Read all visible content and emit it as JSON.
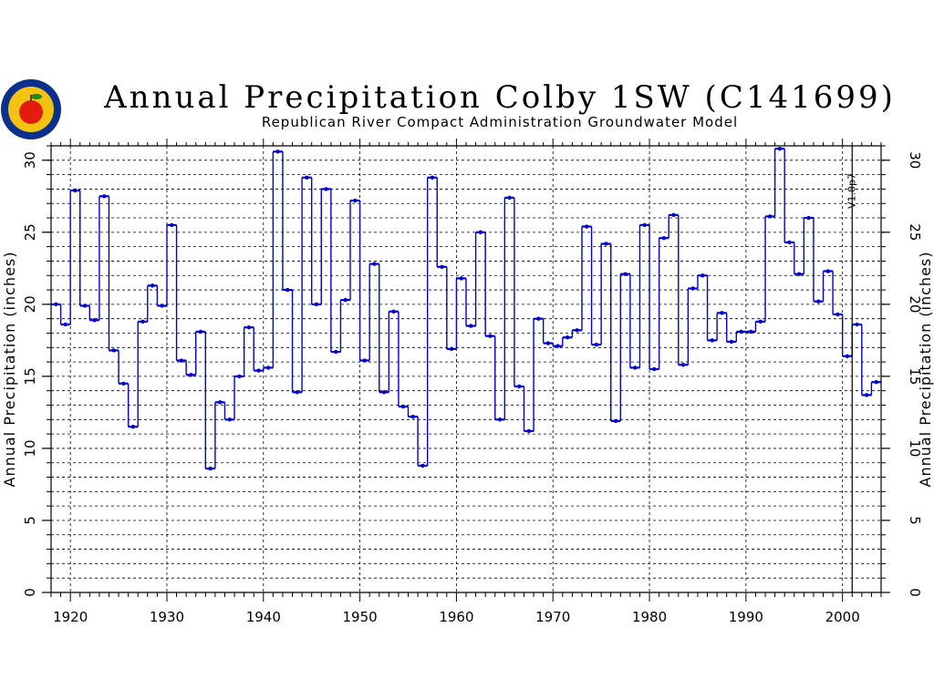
{
  "colors": {
    "series": "#0000cc",
    "connector": "#000000",
    "axis": "#000000",
    "grid": "#000000"
  },
  "logo": {
    "icon": "apple-seal-icon",
    "colors": {
      "ring": "#0b2f8a",
      "field": "#f3c312",
      "apple": "#e51b0f",
      "leaf": "#1e8a1e"
    }
  },
  "chart_data": {
    "type": "line",
    "title": "Annual Precipitation Colby 1SW (C141699)",
    "subtitle": "Republican River Compact Administration Groundwater Model",
    "ylabel_left": "Annual Precipitation (inches)",
    "ylabel_right": "Annual Precipitation (inches)",
    "xlim": [
      1918,
      2004
    ],
    "ylim": [
      0,
      31
    ],
    "x_ticks": [
      1920,
      1930,
      1940,
      1950,
      1960,
      1970,
      1980,
      1990,
      2000
    ],
    "y_ticks": [
      0,
      5,
      10,
      15,
      20,
      25,
      30
    ],
    "y_minor_step": 1,
    "grid": true,
    "version_marker": {
      "x": 2001,
      "label": "V1.0p7"
    },
    "x": [
      1918,
      1919,
      1920,
      1921,
      1922,
      1923,
      1924,
      1925,
      1926,
      1927,
      1928,
      1929,
      1930,
      1931,
      1932,
      1933,
      1934,
      1935,
      1936,
      1937,
      1938,
      1939,
      1940,
      1941,
      1942,
      1943,
      1944,
      1945,
      1946,
      1947,
      1948,
      1949,
      1950,
      1951,
      1952,
      1953,
      1954,
      1955,
      1956,
      1957,
      1958,
      1959,
      1960,
      1961,
      1962,
      1963,
      1964,
      1965,
      1966,
      1967,
      1968,
      1969,
      1970,
      1971,
      1972,
      1973,
      1974,
      1975,
      1976,
      1977,
      1978,
      1979,
      1980,
      1981,
      1982,
      1983,
      1984,
      1985,
      1986,
      1987,
      1988,
      1989,
      1990,
      1991,
      1992,
      1993,
      1994,
      1995,
      1996,
      1997,
      1998,
      1999,
      2000,
      2001,
      2002,
      2003
    ],
    "values": [
      20.0,
      18.6,
      27.9,
      19.9,
      18.9,
      27.5,
      16.8,
      14.5,
      11.5,
      18.8,
      21.3,
      19.9,
      25.5,
      16.1,
      15.1,
      18.1,
      8.6,
      13.2,
      12.0,
      15.0,
      18.4,
      15.4,
      15.6,
      30.6,
      21.0,
      13.9,
      28.8,
      20.0,
      28.0,
      16.7,
      20.3,
      27.2,
      16.1,
      22.8,
      13.9,
      19.5,
      12.9,
      12.2,
      8.8,
      28.8,
      22.6,
      16.9,
      21.8,
      18.5,
      25.0,
      17.8,
      12.0,
      27.4,
      14.3,
      11.2,
      19.0,
      17.3,
      17.1,
      17.7,
      18.2,
      25.4,
      17.2,
      24.2,
      11.9,
      22.1,
      15.6,
      25.5,
      15.5,
      24.6,
      26.2,
      15.8,
      21.1,
      22.0,
      17.5,
      19.4,
      17.4,
      18.1,
      18.1,
      18.8,
      26.1,
      30.8,
      24.3,
      22.1,
      26.0,
      20.2,
      22.3,
      19.3,
      16.4,
      18.6,
      13.7,
      14.6
    ]
  }
}
